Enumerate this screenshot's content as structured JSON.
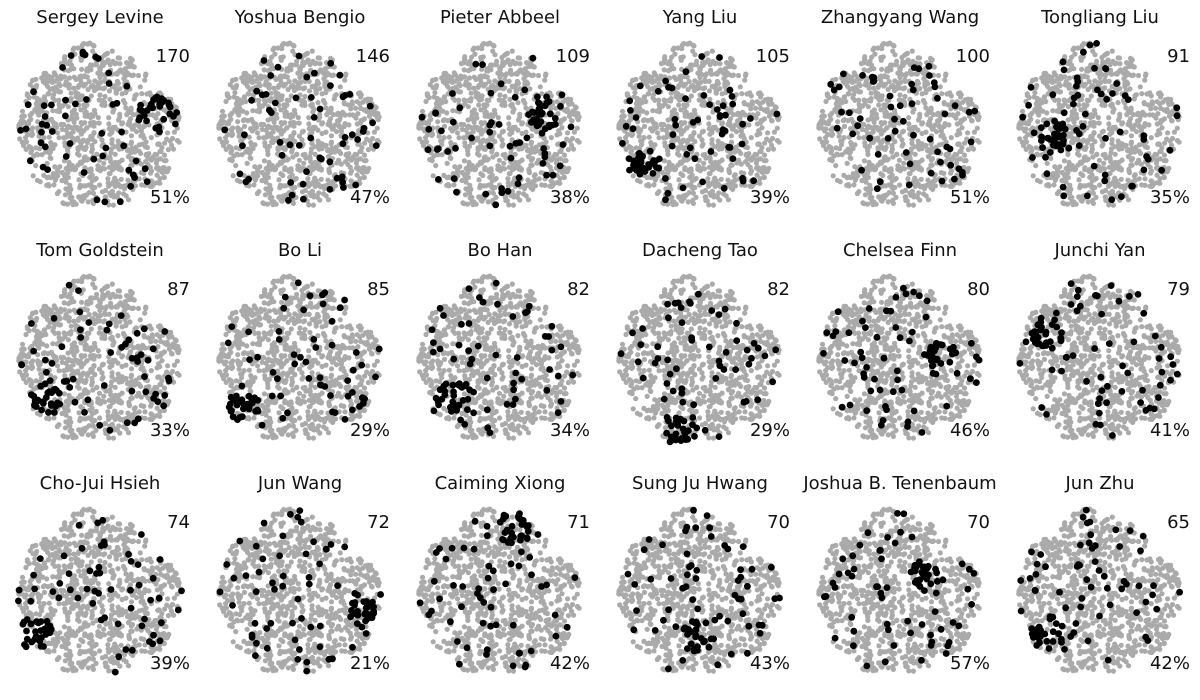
{
  "chart_data": {
    "type": "scatter",
    "layout": "small-multiples",
    "rows": 3,
    "columns": 6,
    "colors": {
      "background_points": "#aaaaaa",
      "highlight_points": "#000000"
    },
    "panels": [
      {
        "name": "Sergey Levine",
        "count": "170",
        "percent": "51%",
        "focus": [
          [
            0.68,
            -0.15
          ]
        ]
      },
      {
        "name": "Yoshua Bengio",
        "count": "146",
        "percent": "47%",
        "focus": []
      },
      {
        "name": "Pieter Abbeel",
        "count": "109",
        "percent": "38%",
        "focus": [
          [
            0.55,
            -0.15
          ]
        ]
      },
      {
        "name": "Yang Liu",
        "count": "105",
        "percent": "39%",
        "focus": [
          [
            -0.6,
            0.5
          ]
        ]
      },
      {
        "name": "Zhangyang Wang",
        "count": "100",
        "percent": "51%",
        "focus": []
      },
      {
        "name": "Tongliang Liu",
        "count": "91",
        "percent": "35%",
        "focus": [
          [
            -0.5,
            0.15
          ]
        ]
      },
      {
        "name": "Tom Goldstein",
        "count": "87",
        "percent": "33%",
        "focus": [
          [
            -0.6,
            0.45
          ]
        ]
      },
      {
        "name": "Bo Li",
        "count": "85",
        "percent": "29%",
        "focus": [
          [
            -0.65,
            0.55
          ]
        ]
      },
      {
        "name": "Bo Han",
        "count": "82",
        "percent": "34%",
        "focus": [
          [
            -0.55,
            0.45
          ]
        ]
      },
      {
        "name": "Dacheng Tao",
        "count": "82",
        "percent": "29%",
        "focus": [
          [
            -0.2,
            0.85
          ]
        ]
      },
      {
        "name": "Chelsea Finn",
        "count": "80",
        "percent": "46%",
        "focus": [
          [
            0.5,
            0.0
          ]
        ]
      },
      {
        "name": "Junchi Yan",
        "count": "79",
        "percent": "41%",
        "focus": [
          [
            -0.6,
            -0.3
          ]
        ]
      },
      {
        "name": "Cho-Jui Hsieh",
        "count": "74",
        "percent": "39%",
        "focus": [
          [
            -0.75,
            0.5
          ]
        ]
      },
      {
        "name": "Jun Wang",
        "count": "72",
        "percent": "21%",
        "focus": [
          [
            0.75,
            0.2
          ]
        ]
      },
      {
        "name": "Caiming Xiong",
        "count": "71",
        "percent": "42%",
        "focus": [
          [
            0.2,
            -0.75
          ]
        ]
      },
      {
        "name": "Sung Ju Hwang",
        "count": "70",
        "percent": "43%",
        "focus": [
          [
            0.0,
            0.55
          ]
        ]
      },
      {
        "name": "Joshua B. Tenenbaum",
        "count": "70",
        "percent": "57%",
        "focus": [
          [
            0.35,
            -0.2
          ]
        ]
      },
      {
        "name": "Jun Zhu",
        "count": "65",
        "percent": "42%",
        "focus": [
          [
            -0.6,
            0.5
          ]
        ]
      }
    ]
  }
}
